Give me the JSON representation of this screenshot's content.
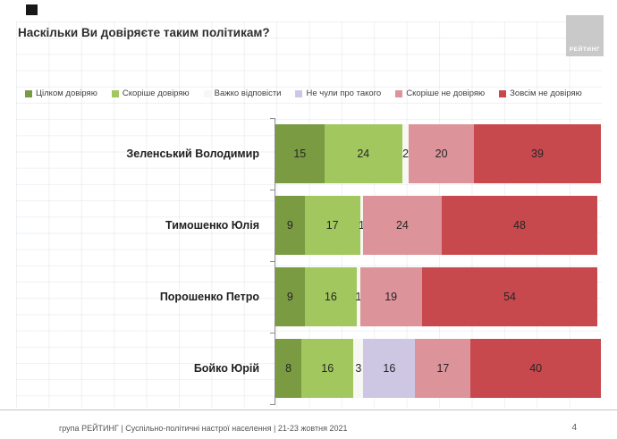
{
  "title": "Наскільки Ви довіряєте таким політикам?",
  "logo_text": "РЕЙТИНГ",
  "legend": [
    {
      "label": "Цілком довіряю",
      "color": "#7b9b42"
    },
    {
      "label": "Скоріше довіряю",
      "color": "#a2c75e"
    },
    {
      "label": "Важко відповісти",
      "color": "#f7f7f3"
    },
    {
      "label": "Не чули про такого",
      "color": "#cdc7e4"
    },
    {
      "label": "Скоріше не довіряю",
      "color": "#dc939a"
    },
    {
      "label": "Зовсім не довіряю",
      "color": "#c8494d"
    }
  ],
  "chart_data": {
    "type": "bar",
    "orientation": "horizontal",
    "stacked": true,
    "title": "Наскільки Ви довіряєте таким політикам?",
    "categories": [
      "Зеленський Володимир",
      "Тимошенко Юлія",
      "Порошенко Петро",
      "Бойко Юрій"
    ],
    "series": [
      {
        "name": "Цілком довіряю",
        "color": "#7b9b42",
        "values": [
          15,
          9,
          9,
          8
        ]
      },
      {
        "name": "Скоріше довіряю",
        "color": "#a2c75e",
        "values": [
          24,
          17,
          16,
          16
        ]
      },
      {
        "name": "Важко відповісти",
        "color": "#f7f7f3",
        "values": [
          2,
          1,
          1,
          3
        ]
      },
      {
        "name": "Не чули про такого",
        "color": "#cdc7e4",
        "values": [
          0,
          0,
          0,
          16
        ]
      },
      {
        "name": "Скоріше не довіряю",
        "color": "#dc939a",
        "values": [
          20,
          24,
          19,
          17
        ]
      },
      {
        "name": "Зовсім не довіряю",
        "color": "#c8494d",
        "values": [
          39,
          48,
          54,
          40
        ]
      }
    ],
    "xlim": [
      0,
      100
    ],
    "value_labels": true,
    "legend_position": "top",
    "grid": true
  },
  "footer": {
    "source": "група РЕЙТИНГ | Суспільно-політичні настрої населення | 21-23 жовтня 2021",
    "page": "4"
  }
}
